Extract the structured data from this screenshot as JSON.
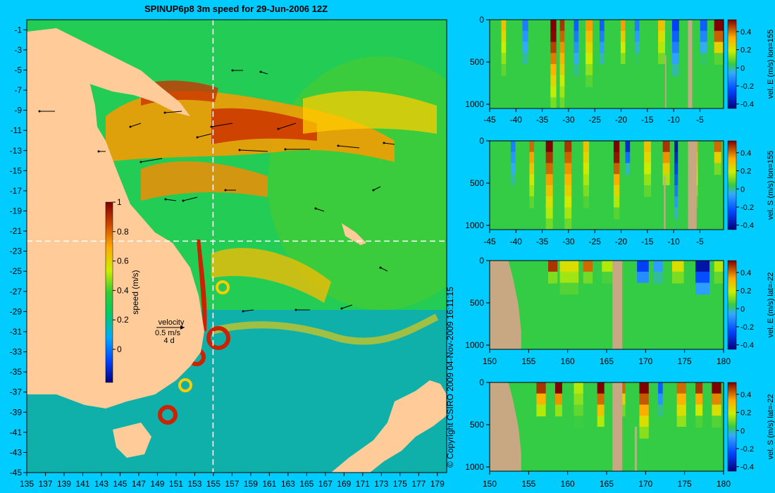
{
  "title": "SPINUP6p8 3m speed for 29-Jun-2006 12Z",
  "copyright": "© Copyright CSIRO 2009   04-Nov-2009 16:11:15",
  "colors": {
    "background": "#00ccff",
    "land": "#ffcc99",
    "section_land": "#c8a882",
    "crosshair": "#ffffff"
  },
  "map": {
    "x_ticks": [
      "135",
      "137",
      "139",
      "141",
      "143",
      "145",
      "147",
      "149",
      "151",
      "153",
      "155",
      "157",
      "159",
      "161",
      "163",
      "165",
      "167",
      "169",
      "171",
      "173",
      "175",
      "177",
      "179"
    ],
    "y_ticks": [
      "-1",
      "-3",
      "-5",
      "-7",
      "-9",
      "-11",
      "-13",
      "-15",
      "-17",
      "-19",
      "-21",
      "-23",
      "-25",
      "-27",
      "-29",
      "-31",
      "-33",
      "-35",
      "-37",
      "-39",
      "-41",
      "-43",
      "-45"
    ],
    "colorbar": {
      "label": "speed (m/s)",
      "ticks": [
        "1",
        "0.8",
        "0.6",
        "0.4",
        "0.2",
        "0"
      ]
    },
    "legend": {
      "title": "velocity",
      "scale": "0.5 m/s",
      "duration": "4 d"
    }
  },
  "chart_data": [
    {
      "type": "heatmap",
      "title": "SPINUP6p8 3m speed for 29-Jun-2006 12Z",
      "variable": "speed (m/s)",
      "xlim": [
        135,
        180
      ],
      "ylim": [
        -45,
        0
      ],
      "crosshair": {
        "lon": 155,
        "lat": -22
      },
      "colorbar_range": [
        0,
        1
      ]
    },
    {
      "type": "heatmap",
      "ylabel": "vel. E (m/s) lon=155",
      "x_ticks": [
        "-45",
        "-40",
        "-35",
        "-30",
        "-25",
        "-20",
        "-15",
        "-10",
        "-5"
      ],
      "y_ticks": [
        "0",
        "500",
        "1000"
      ],
      "cb_ticks": [
        "0.4",
        "0.2",
        "0",
        "-0.2",
        "-0.4"
      ],
      "xlim": [
        -45,
        -0.5
      ],
      "ylim": [
        1050,
        0
      ]
    },
    {
      "type": "heatmap",
      "ylabel": "vel. S (m/s) lon=155",
      "x_ticks": [
        "-45",
        "-40",
        "-35",
        "-30",
        "-25",
        "-20",
        "-15",
        "-10",
        "-5"
      ],
      "y_ticks": [
        "0",
        "500",
        "1000"
      ],
      "cb_ticks": [
        "0.4",
        "0.2",
        "0",
        "-0.2",
        "-0.4"
      ],
      "xlim": [
        -45,
        -0.5
      ],
      "ylim": [
        1050,
        0
      ]
    },
    {
      "type": "heatmap",
      "ylabel": "vel. E (m/s) lat=-22",
      "x_ticks": [
        "150",
        "155",
        "160",
        "165",
        "170",
        "175",
        "180"
      ],
      "y_ticks": [
        "0",
        "500",
        "1000"
      ],
      "cb_ticks": [
        "0.4",
        "0.2",
        "0",
        "-0.2",
        "-0.4"
      ],
      "xlim": [
        150,
        180
      ],
      "ylim": [
        1050,
        0
      ]
    },
    {
      "type": "heatmap",
      "ylabel": "vel. S (m/s) lat=-22",
      "x_ticks": [
        "150",
        "155",
        "160",
        "165",
        "170",
        "175",
        "180"
      ],
      "y_ticks": [
        "0",
        "500",
        "1000"
      ],
      "cb_ticks": [
        "0.4",
        "0.2",
        "0",
        "-0.2",
        "-0.4"
      ],
      "xlim": [
        150,
        180
      ],
      "ylim": [
        1050,
        0
      ]
    }
  ]
}
